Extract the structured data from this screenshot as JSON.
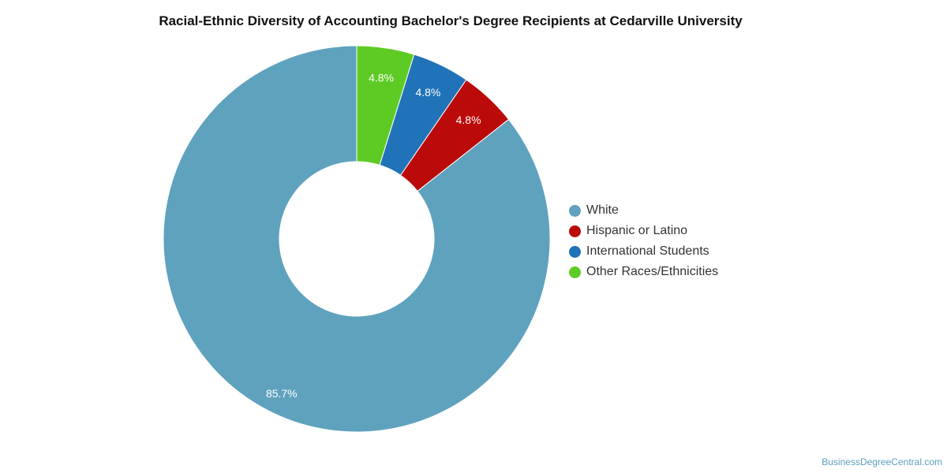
{
  "chart_data": {
    "type": "pie",
    "subtype": "donut",
    "title": "Racial-Ethnic Diversity of Accounting Bachelor's Degree Recipients at Cedarville University",
    "categories": [
      "White",
      "Hispanic or Latino",
      "International Students",
      "Other Races/Ethnicities"
    ],
    "values": [
      85.7,
      4.8,
      4.8,
      4.8
    ],
    "data_labels": [
      "85.7%",
      "4.8%",
      "4.8%",
      "4.8%"
    ],
    "colors": [
      "#5fa2be",
      "#bb0a0a",
      "#2073b8",
      "#5ecb25"
    ],
    "legend_position": "right"
  },
  "watermark": "BusinessDegreeCentral.com"
}
